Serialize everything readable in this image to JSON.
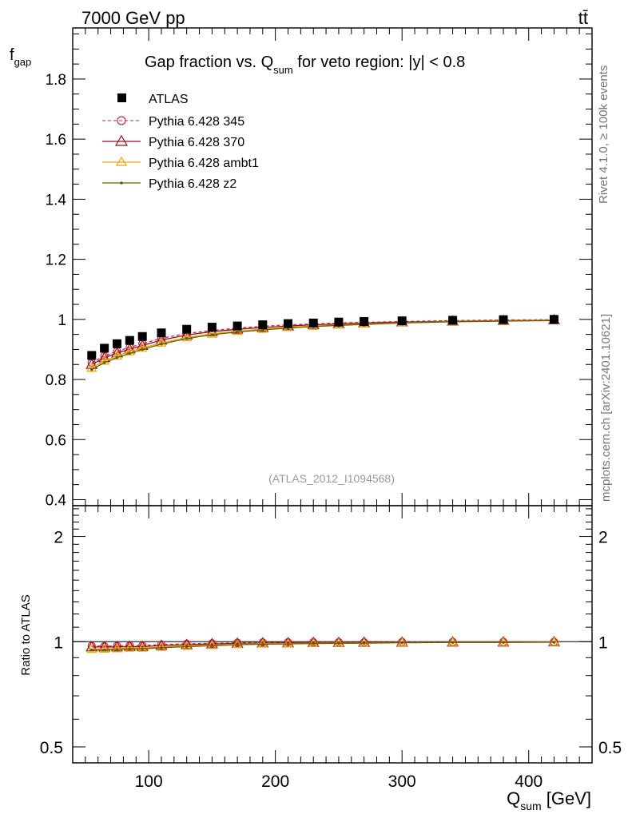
{
  "header": {
    "energy_label": "7000 GeV pp",
    "process_label": "tt̄"
  },
  "side_labels": {
    "rivet": "Rivet 4.1.0, ≥ 100k events",
    "mcplots": "mcplots.cern.ch [arXiv:2401.10621]"
  },
  "colors": {
    "data": "#000000",
    "p345": "#c4284a",
    "p370": "#9b0c24",
    "ambt1": "#f4a300",
    "z2": "#5b6400"
  },
  "chart_data": [
    {
      "type": "line",
      "panel": "main",
      "title": {
        "pre": "Gap fraction vs. Q",
        "sub": "sum",
        "post": " for veto region: |y| < 0.8"
      },
      "ylabel": {
        "main": "f",
        "sub": "gap"
      },
      "analysis_tag": "(ATLAS_2012_I1094568)",
      "xlim": [
        40,
        450
      ],
      "ylim": [
        0.38,
        1.97
      ],
      "yticks": [
        0.4,
        0.6,
        0.8,
        1,
        1.2,
        1.4,
        1.6,
        1.8
      ],
      "ytick_labels": [
        "0.4",
        "0.6",
        "0.8",
        "1",
        "1.2",
        "1.4",
        "1.6",
        "1.8"
      ],
      "x": [
        55,
        65,
        75,
        85,
        95,
        110,
        130,
        150,
        170,
        190,
        210,
        230,
        250,
        270,
        300,
        340,
        380,
        420
      ],
      "series": [
        {
          "name": "ATLAS",
          "key": "data",
          "marker": "square",
          "values": [
            0.88,
            0.904,
            0.919,
            0.93,
            0.943,
            0.955,
            0.967,
            0.974,
            0.978,
            0.982,
            0.986,
            0.988,
            0.991,
            0.993,
            0.995,
            0.997,
            0.999,
            1.0
          ]
        },
        {
          "name": "Pythia 6.428 345",
          "key": "p345",
          "marker": "circle",
          "dashed": true,
          "values": [
            0.856,
            0.878,
            0.894,
            0.907,
            0.919,
            0.937,
            0.953,
            0.963,
            0.971,
            0.977,
            0.982,
            0.985,
            0.988,
            0.99,
            0.993,
            0.996,
            0.998,
            0.999
          ]
        },
        {
          "name": "Pythia 6.428 370",
          "key": "p370",
          "marker": "triangle",
          "values": [
            0.85,
            0.872,
            0.888,
            0.901,
            0.913,
            0.931,
            0.948,
            0.959,
            0.967,
            0.973,
            0.978,
            0.982,
            0.985,
            0.988,
            0.991,
            0.994,
            0.996,
            0.998
          ]
        },
        {
          "name": "Pythia 6.428 ambt1",
          "key": "ambt1",
          "marker": "triangle",
          "values": [
            0.838,
            0.862,
            0.879,
            0.893,
            0.905,
            0.922,
            0.94,
            0.952,
            0.961,
            0.968,
            0.974,
            0.978,
            0.982,
            0.985,
            0.989,
            0.993,
            0.995,
            0.997
          ]
        },
        {
          "name": "Pythia 6.428 z2",
          "key": "z2",
          "marker": "dot",
          "values": [
            0.833,
            0.856,
            0.873,
            0.887,
            0.9,
            0.918,
            0.936,
            0.949,
            0.958,
            0.965,
            0.971,
            0.976,
            0.98,
            0.983,
            0.988,
            0.992,
            0.994,
            0.996
          ]
        }
      ]
    },
    {
      "type": "line",
      "panel": "ratio",
      "ylabel": "Ratio to ATLAS",
      "xlabel": {
        "main": "Q",
        "sub": "sum",
        "post": " [GeV]"
      },
      "xlim": [
        40,
        450
      ],
      "xticks": [
        100,
        200,
        300,
        400
      ],
      "xtick_labels": [
        "100",
        "200",
        "300",
        "400"
      ],
      "ylim": [
        0.45,
        2.45
      ],
      "yscale": "log",
      "yticks": [
        0.5,
        1,
        2
      ],
      "ytick_labels": [
        "0.5",
        "1",
        "2"
      ],
      "x": [
        55,
        65,
        75,
        85,
        95,
        110,
        130,
        150,
        170,
        190,
        210,
        230,
        250,
        270,
        300,
        340,
        380,
        420
      ],
      "series": [
        {
          "name": "Pythia 6.428 345",
          "key": "p345",
          "marker": "circle",
          "dashed": true,
          "values": [
            0.973,
            0.971,
            0.973,
            0.975,
            0.975,
            0.981,
            0.986,
            0.989,
            0.993,
            0.995,
            0.996,
            0.997,
            0.997,
            0.997,
            0.998,
            0.999,
            0.999,
            0.999
          ]
        },
        {
          "name": "Pythia 6.428 370",
          "key": "p370",
          "marker": "triangle",
          "values": [
            0.966,
            0.965,
            0.966,
            0.969,
            0.968,
            0.975,
            0.98,
            0.985,
            0.989,
            0.991,
            0.992,
            0.994,
            0.994,
            0.995,
            0.996,
            0.997,
            0.997,
            0.998
          ]
        },
        {
          "name": "Pythia 6.428 ambt1",
          "key": "ambt1",
          "marker": "triangle",
          "values": [
            0.952,
            0.953,
            0.956,
            0.96,
            0.96,
            0.965,
            0.972,
            0.977,
            0.983,
            0.986,
            0.988,
            0.99,
            0.991,
            0.992,
            0.994,
            0.996,
            0.996,
            0.997
          ]
        },
        {
          "name": "Pythia 6.428 z2",
          "key": "z2",
          "marker": "dot",
          "values": [
            0.947,
            0.947,
            0.95,
            0.954,
            0.954,
            0.961,
            0.968,
            0.974,
            0.98,
            0.983,
            0.985,
            0.988,
            0.989,
            0.99,
            0.993,
            0.995,
            0.995,
            0.996
          ]
        }
      ]
    }
  ]
}
